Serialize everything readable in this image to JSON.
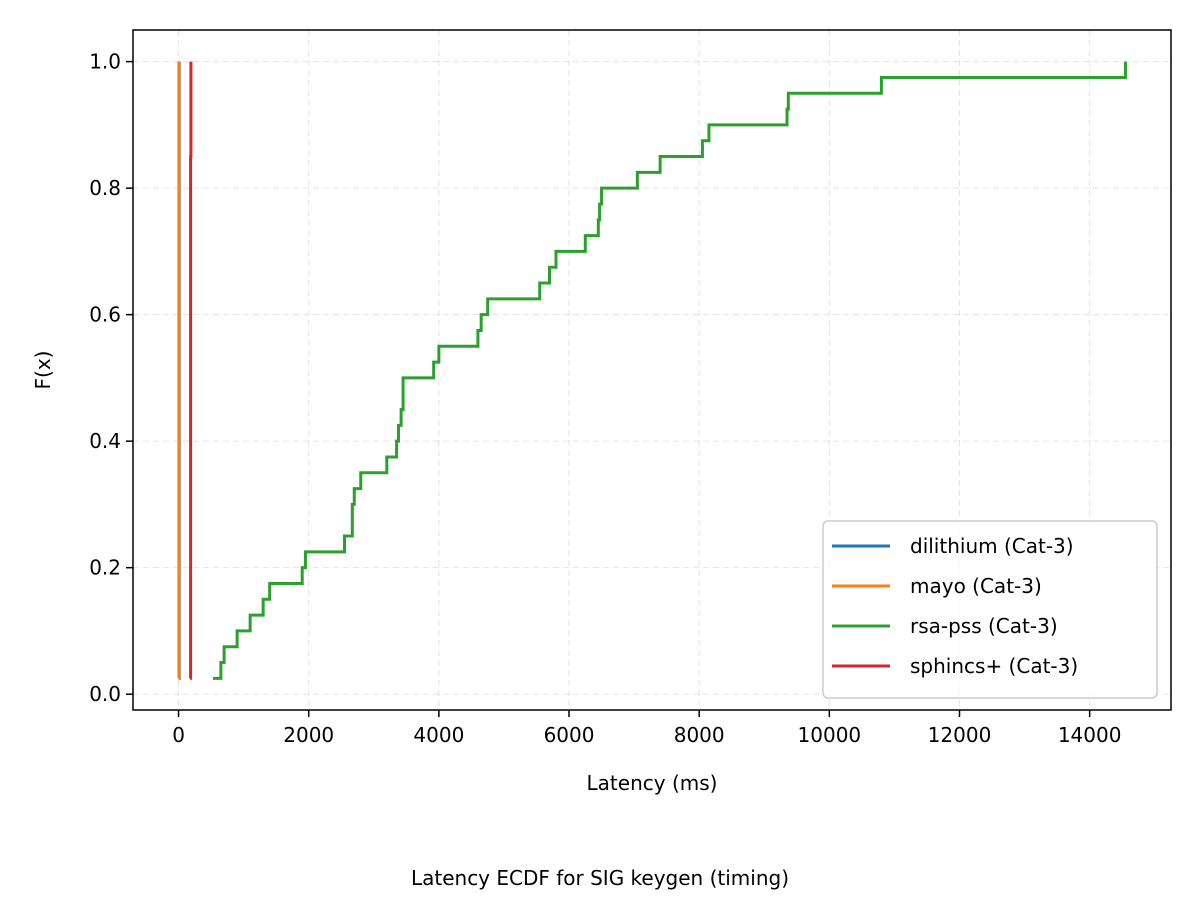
{
  "chart_data": {
    "type": "line",
    "subtype": "ecdf",
    "title": "Latency ECDF for SIG keygen (timing)",
    "xlabel": "Latency (ms)",
    "ylabel": "F(x)",
    "xlim": [
      -700,
      15250
    ],
    "ylim": [
      -0.025,
      1.05
    ],
    "xticks": [
      0,
      2000,
      4000,
      6000,
      8000,
      10000,
      12000,
      14000
    ],
    "xtick_labels": [
      "0",
      "2000",
      "4000",
      "6000",
      "8000",
      "10000",
      "12000",
      "14000"
    ],
    "yticks": [
      0.0,
      0.2,
      0.4,
      0.6,
      0.8,
      1.0
    ],
    "ytick_labels": [
      "0.0",
      "0.2",
      "0.4",
      "0.6",
      "0.8",
      "1.0"
    ],
    "grid": true,
    "legend_position": "bottom-right",
    "series": [
      {
        "name": "dilithium (Cat-3)",
        "color": "#1f77b4",
        "x": [
          5,
          10
        ],
        "y": [
          0.025,
          1.0
        ]
      },
      {
        "name": "mayo (Cat-3)",
        "color": "#ff7f0e",
        "x": [
          0,
          5
        ],
        "y": [
          0.025,
          1.0
        ]
      },
      {
        "name": "rsa-pss (Cat-3)",
        "color": "#2ca02c",
        "x": [
          530,
          650,
          700,
          900,
          1100,
          1300,
          1400,
          1900,
          1950,
          2000,
          2550,
          2670,
          2700,
          2800,
          3200,
          3350,
          3380,
          3420,
          3450,
          3700,
          3920,
          4000,
          4600,
          4650,
          4750,
          5550,
          5700,
          5800,
          6000,
          6250,
          6450,
          6470,
          6500,
          7050,
          7400,
          7700,
          8050,
          8150,
          9350,
          9370,
          9400,
          10800,
          14550
        ],
        "y": [
          0.025,
          0.05,
          0.075,
          0.1,
          0.125,
          0.15,
          0.175,
          0.2,
          0.225,
          0.225,
          0.25,
          0.3,
          0.325,
          0.35,
          0.375,
          0.4,
          0.425,
          0.45,
          0.5,
          0.5,
          0.525,
          0.55,
          0.575,
          0.6,
          0.625,
          0.65,
          0.675,
          0.7,
          0.7,
          0.725,
          0.75,
          0.775,
          0.8,
          0.825,
          0.85,
          0.85,
          0.875,
          0.9,
          0.925,
          0.95,
          0.95,
          0.975,
          1.0
        ]
      },
      {
        "name": "sphincs+ (Cat-3)",
        "color": "#d62728",
        "x": [
          180,
          185,
          190
        ],
        "y": [
          0.025,
          0.85,
          1.0
        ]
      }
    ]
  }
}
